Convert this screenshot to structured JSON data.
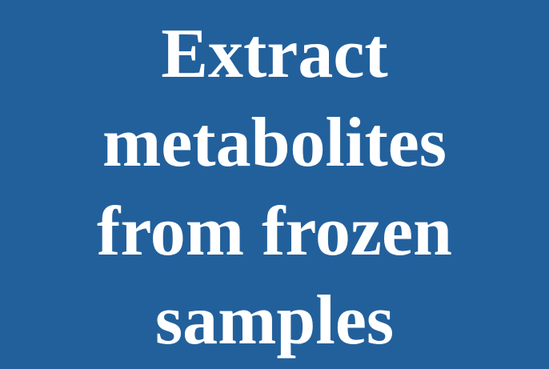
{
  "slide": {
    "title_lines": [
      "Extract",
      "metabolites",
      "from frozen",
      "samples"
    ],
    "background_color": "#22609c",
    "text_color": "#ffffff"
  }
}
